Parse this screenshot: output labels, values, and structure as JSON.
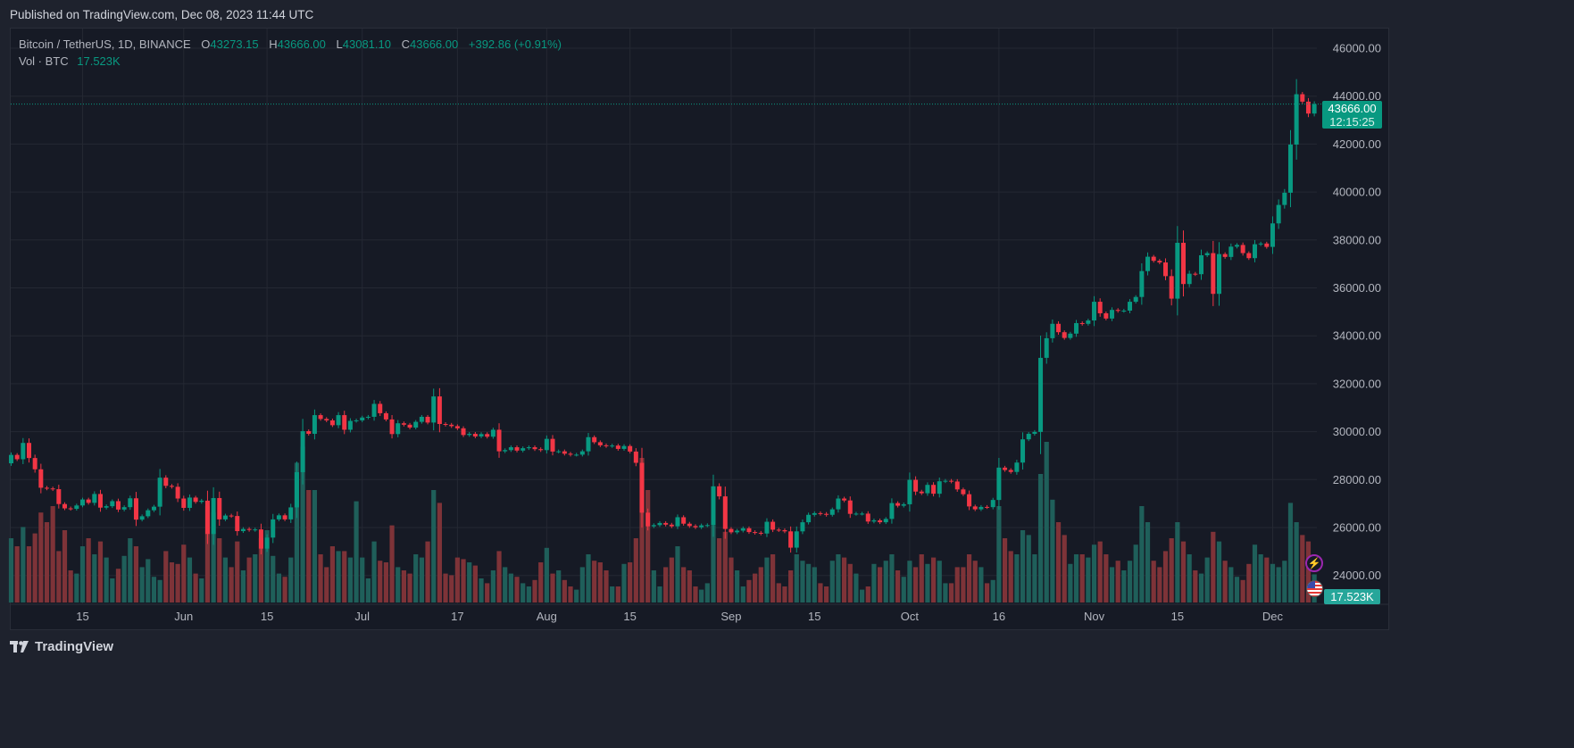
{
  "header": {
    "published": "Published on TradingView.com, Dec 08, 2023 11:44 UTC"
  },
  "legend": {
    "symbol": "Bitcoin / TetherUS, 1D, BINANCE",
    "open_label": "O",
    "open": "43273.15",
    "high_label": "H",
    "high": "43666.00",
    "low_label": "L",
    "low": "43081.10",
    "close_label": "C",
    "close": "43666.00",
    "change": "+392.86 (+0.91%)",
    "vol_label": "Vol · BTC",
    "vol": "17.523K"
  },
  "price_badge": {
    "price": "43666.00",
    "countdown": "12:15:25"
  },
  "volume_badge": "17.523K",
  "footer": {
    "brand": "TradingView"
  },
  "icons": {
    "logo": "tradingview-logo-icon",
    "alert": "lightning-icon",
    "currency": "us-flag-icon"
  },
  "colors": {
    "up": "#089981",
    "down": "#f23645",
    "background": "#161a25",
    "grid": "#242833"
  },
  "chart_data": {
    "type": "candlestick",
    "symbol": "BTCUSDT",
    "interval": "1D",
    "start_date": "2023-05-03",
    "end_date": "2023-12-08",
    "ylim": [
      23000,
      47000
    ],
    "y_ticks": [
      "46000.00",
      "44000.00",
      "42000.00",
      "40000.00",
      "38000.00",
      "36000.00",
      "34000.00",
      "32000.00",
      "30000.00",
      "28000.00",
      "26000.00",
      "24000.00"
    ],
    "x_ticks": [
      {
        "label": "15",
        "date": "2023-05-15"
      },
      {
        "label": "Jun",
        "date": "2023-06-01"
      },
      {
        "label": "15",
        "date": "2023-06-15"
      },
      {
        "label": "Jul",
        "date": "2023-07-01"
      },
      {
        "label": "17",
        "date": "2023-07-17"
      },
      {
        "label": "Aug",
        "date": "2023-08-01"
      },
      {
        "label": "15",
        "date": "2023-08-15"
      },
      {
        "label": "Sep",
        "date": "2023-09-01"
      },
      {
        "label": "15",
        "date": "2023-09-15"
      },
      {
        "label": "Oct",
        "date": "2023-10-01"
      },
      {
        "label": "16",
        "date": "2023-10-16"
      },
      {
        "label": "Nov",
        "date": "2023-11-01"
      },
      {
        "label": "15",
        "date": "2023-11-15"
      },
      {
        "label": "Dec",
        "date": "2023-12-01"
      }
    ],
    "grid": true,
    "first_open": 28680,
    "close": [
      29030,
      28850,
      29530,
      28900,
      28430,
      27660,
      27630,
      27600,
      26980,
      26800,
      26780,
      26920,
      27170,
      27030,
      27400,
      26830,
      26890,
      27100,
      26750,
      26850,
      27220,
      26330,
      26470,
      26720,
      26870,
      28080,
      27740,
      27700,
      27210,
      26820,
      27250,
      27070,
      27120,
      25730,
      27230,
      26340,
      26500,
      26480,
      25850,
      25940,
      25900,
      25920,
      25120,
      25580,
      26340,
      26510,
      26340,
      26840,
      28310,
      30020,
      29910,
      30690,
      30530,
      30470,
      30270,
      30690,
      30080,
      30450,
      30470,
      30590,
      30620,
      31160,
      30770,
      30510,
      29900,
      30350,
      30290,
      30170,
      30410,
      30620,
      30380,
      31470,
      30320,
      30290,
      30230,
      30140,
      29860,
      29910,
      29800,
      29900,
      29790,
      30080,
      29180,
      29230,
      29350,
      29210,
      29310,
      29350,
      29270,
      29230,
      29700,
      29170,
      29180,
      29080,
      29040,
      29040,
      29180,
      29770,
      29560,
      29430,
      29400,
      29420,
      29280,
      29400,
      29170,
      28700,
      26620,
      26050,
      26100,
      26190,
      26120,
      26050,
      26430,
      26160,
      26060,
      26010,
      26090,
      26100,
      27720,
      27300,
      25940,
      25800,
      25870,
      25970,
      25810,
      25780,
      25750,
      26240,
      25910,
      25890,
      25840,
      25160,
      25840,
      26220,
      26530,
      26600,
      26570,
      26530,
      26760,
      27210,
      27130,
      26570,
      26580,
      26580,
      26250,
      26300,
      26220,
      26360,
      27020,
      26910,
      26970,
      27990,
      27500,
      27430,
      27780,
      27410,
      27930,
      27950,
      27920,
      27590,
      27390,
      26880,
      26760,
      26860,
      26850,
      27150,
      28500,
      28400,
      28320,
      28710,
      29680,
      29910,
      29990,
      33080,
      33900,
      34500,
      34150,
      33910,
      34090,
      34530,
      34500,
      34640,
      35420,
      34940,
      34720,
      35080,
      35040,
      35050,
      35420,
      35620,
      36700,
      37300,
      37130,
      37060,
      36490,
      35550,
      37880,
      36160,
      36590,
      36570,
      37360,
      37450,
      35750,
      37410,
      37290,
      37720,
      37790,
      37450,
      37240,
      37820,
      37850,
      37710,
      38690,
      39460,
      39970,
      41980,
      44080,
      43770,
      43273.15,
      43666
    ],
    "volume_k": [
      40,
      35,
      47,
      35,
      43,
      56,
      50,
      60,
      32,
      45,
      20,
      18,
      35,
      40,
      30,
      38,
      28,
      15,
      21,
      29,
      40,
      35,
      22,
      27,
      16,
      14,
      32,
      25,
      24,
      36,
      28,
      18,
      15,
      60,
      56,
      40,
      28,
      22,
      38,
      20,
      28,
      30,
      40,
      45,
      29,
      18,
      16,
      28,
      87,
      97,
      70,
      70,
      30,
      22,
      35,
      32,
      32,
      28,
      63,
      28,
      15,
      38,
      26,
      25,
      48,
      22,
      20,
      18,
      30,
      28,
      38,
      70,
      62,
      18,
      17,
      28,
      27,
      25,
      23,
      15,
      12,
      20,
      32,
      22,
      18,
      16,
      12,
      10,
      14,
      25,
      34,
      18,
      20,
      14,
      10,
      8,
      22,
      30,
      26,
      25,
      20,
      10,
      10,
      24,
      25,
      40,
      90,
      70,
      20,
      10,
      22,
      28,
      35,
      22,
      20,
      10,
      8,
      12,
      48,
      40,
      44,
      28,
      20,
      10,
      14,
      18,
      22,
      28,
      30,
      12,
      10,
      20,
      30,
      26,
      24,
      22,
      12,
      10,
      26,
      30,
      28,
      24,
      18,
      8,
      10,
      24,
      22,
      26,
      30,
      20,
      16,
      26,
      22,
      30,
      24,
      28,
      26,
      12,
      12,
      22,
      22,
      30,
      26,
      22,
      12,
      14,
      60,
      40,
      32,
      30,
      45,
      42,
      30,
      80,
      100,
      64,
      50,
      42,
      24,
      30,
      30,
      28,
      36,
      38,
      30,
      22,
      26,
      20,
      26,
      36,
      60,
      50,
      26,
      22,
      32,
      40,
      50,
      38,
      30,
      20,
      18,
      28,
      44,
      38,
      26,
      22,
      16,
      14,
      24,
      36,
      30,
      28,
      24,
      22,
      26,
      62,
      50,
      42,
      38,
      17.523
    ],
    "last_price": 43666.0
  }
}
